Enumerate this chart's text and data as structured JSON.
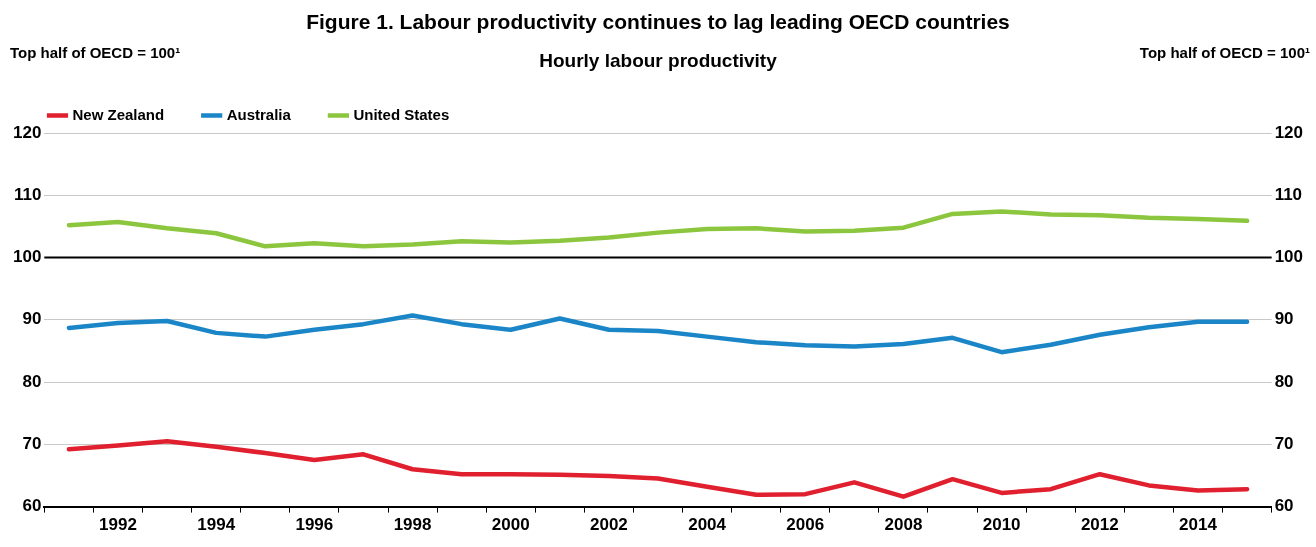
{
  "chart_data": {
    "type": "line",
    "title": "Figure 1.  Labour productivity continues to lag leading OECD countries",
    "subtitle": "Hourly labour productivity",
    "ylabel": "Top half of OECD = 100¹",
    "y2label": "Top half of OECD = 100¹",
    "categories": [
      null,
      "1992",
      null,
      "1994",
      null,
      "1996",
      null,
      "1998",
      null,
      "2000",
      null,
      "2002",
      null,
      "2004",
      null,
      "2006",
      null,
      "2008",
      null,
      "2010",
      null,
      "2012",
      null,
      "2014",
      null
    ],
    "series": [
      {
        "name": "New Zealand",
        "color": "#e0202e",
        "values": [
          69.2,
          69.8,
          70.5,
          69.6,
          68.6,
          67.5,
          68.4,
          66.0,
          65.2,
          65.2,
          65.1,
          64.9,
          64.5,
          63.2,
          61.9,
          62.0,
          63.9,
          61.6,
          64.4,
          62.2,
          62.8,
          65.2,
          63.4,
          62.6,
          62.8
        ]
      },
      {
        "name": "Australia",
        "color": "#1a86c8",
        "values": [
          88.7,
          89.5,
          89.8,
          87.9,
          87.3,
          88.4,
          89.3,
          90.7,
          89.3,
          88.4,
          90.2,
          88.4,
          88.2,
          87.3,
          86.4,
          85.9,
          85.7,
          86.1,
          87.1,
          84.8,
          86.0,
          87.6,
          88.8,
          89.7,
          89.7
        ]
      },
      {
        "name": "United States",
        "color": "#8cc63f",
        "values": [
          105.2,
          105.7,
          104.7,
          103.9,
          101.8,
          102.3,
          101.8,
          102.1,
          102.6,
          102.4,
          102.7,
          103.2,
          104.0,
          104.6,
          104.7,
          104.2,
          104.3,
          104.8,
          107.0,
          107.4,
          106.9,
          106.8,
          106.4,
          106.2,
          105.9
        ]
      }
    ],
    "ylim": [
      60,
      120
    ],
    "yticks": [
      60,
      70,
      80,
      90,
      100,
      110,
      120
    ],
    "y2lim": [
      60,
      120
    ],
    "y2ticks": [
      60,
      70,
      80,
      90,
      100,
      110,
      120
    ],
    "ref_lines": [
      {
        "axis": "y",
        "value": 100,
        "color": "#000000"
      }
    ],
    "grid": "y",
    "legend": "top left",
    "marker": "none",
    "line_style": "solid"
  }
}
